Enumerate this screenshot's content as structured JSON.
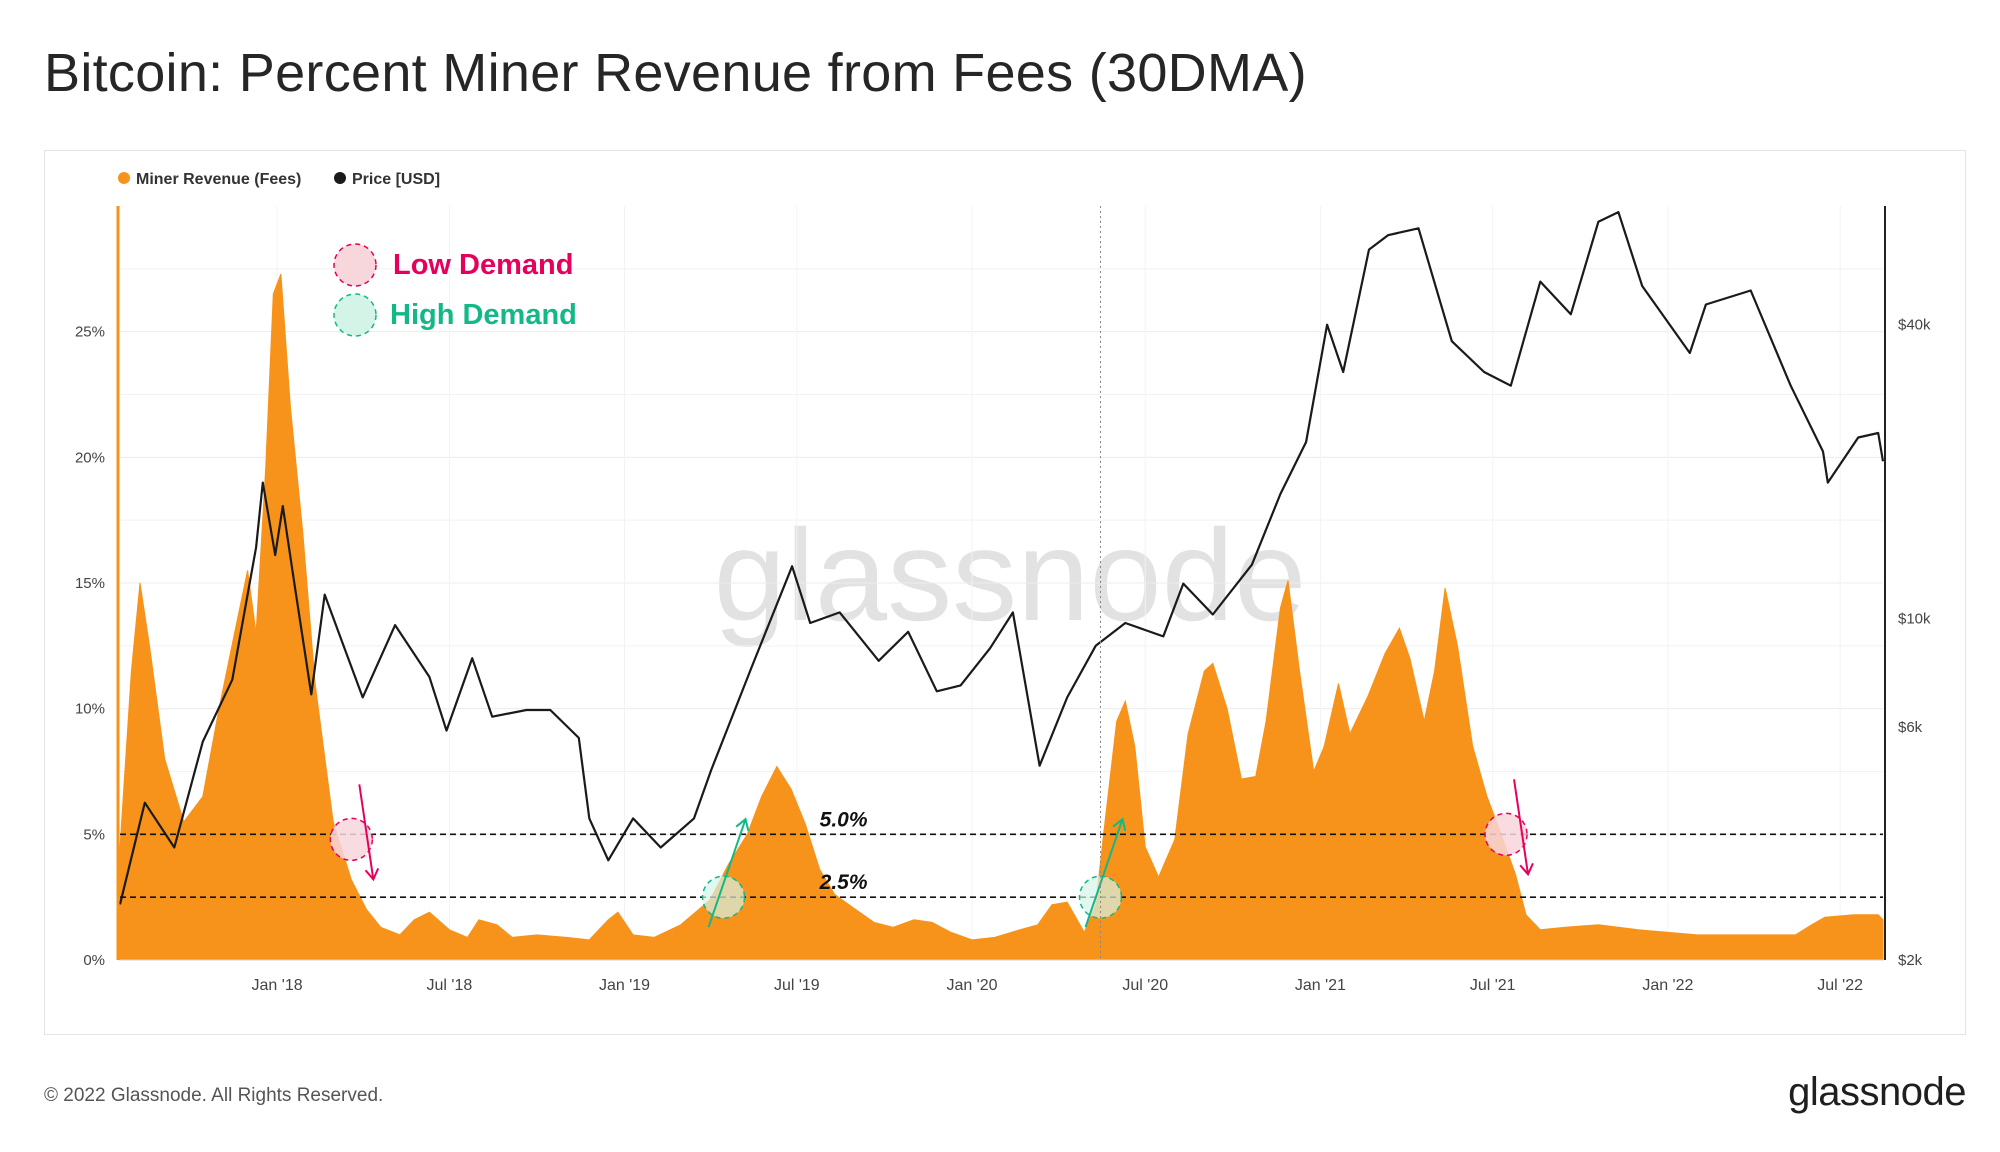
{
  "title": "Bitcoin: Percent Miner Revenue from Fees (30DMA)",
  "footer": "© 2022 Glassnode. All Rights Reserved.",
  "brand": "glassnode",
  "watermark": "glassnode",
  "colors": {
    "fees": "#f7931a",
    "price": "#1a1a1a",
    "low": "#e6005c",
    "high": "#12b886",
    "axis": "#f7931a"
  },
  "annotations": {
    "low_demand": "Low Demand",
    "high_demand": "High Demand",
    "line_5": "5.0%",
    "line_25": "2.5%"
  },
  "chart_data": {
    "type": "area",
    "legend": [
      {
        "name": "Miner Revenue (Fees)",
        "color": "#f7931a"
      },
      {
        "name": "Price [USD]",
        "color": "#1a1a1a"
      }
    ],
    "legend_position": "top-left",
    "grid": true,
    "x_range": [
      "2017-07-20",
      "2022-08-15"
    ],
    "x_ticks": [
      "Jan '18",
      "Jul '18",
      "Jan '19",
      "Jul '19",
      "Jan '20",
      "Jul '20",
      "Jan '21",
      "Jul '21",
      "Jan '22",
      "Jul '22"
    ],
    "y_left": {
      "scale": "linear",
      "range": [
        0,
        30
      ],
      "ticks": [
        "0%",
        "5%",
        "10%",
        "15%",
        "20%",
        "25%"
      ]
    },
    "y_right": {
      "scale": "log",
      "range": [
        2000,
        70000
      ],
      "ticks": [
        "$2k",
        "$6k",
        "$10k",
        "$40k"
      ]
    },
    "reference_lines": [
      {
        "value": 5.0,
        "label": "5.0%"
      },
      {
        "value": 2.5,
        "label": "2.5%"
      }
    ],
    "marker_events": [
      {
        "date": "2018-03-20",
        "type": "low",
        "value": 4.8
      },
      {
        "date": "2019-04-15",
        "type": "high",
        "value": 2.5
      },
      {
        "date": "2020-05-15",
        "type": "high",
        "value": 2.5
      },
      {
        "date": "2021-07-15",
        "type": "low",
        "value": 5.0
      }
    ],
    "vertical_marker": "2020-05-15",
    "fees_series": {
      "name": "Miner Revenue (Fees)",
      "points": [
        [
          "2017-07-20",
          4.5
        ],
        [
          "2017-08-01",
          11.5
        ],
        [
          "2017-08-10",
          15.0
        ],
        [
          "2017-08-20",
          12.5
        ],
        [
          "2017-09-05",
          8.0
        ],
        [
          "2017-09-25",
          5.5
        ],
        [
          "2017-10-15",
          6.5
        ],
        [
          "2017-11-01",
          10.0
        ],
        [
          "2017-11-20",
          13.5
        ],
        [
          "2017-12-01",
          15.5
        ],
        [
          "2017-12-10",
          13.0
        ],
        [
          "2017-12-20",
          19.5
        ],
        [
          "2017-12-28",
          26.5
        ],
        [
          "2018-01-05",
          27.3
        ],
        [
          "2018-01-15",
          22.0
        ],
        [
          "2018-01-28",
          17.0
        ],
        [
          "2018-02-10",
          11.0
        ],
        [
          "2018-03-01",
          5.5
        ],
        [
          "2018-03-20",
          3.2
        ],
        [
          "2018-04-05",
          2.0
        ],
        [
          "2018-04-20",
          1.3
        ],
        [
          "2018-05-10",
          1.0
        ],
        [
          "2018-05-25",
          1.6
        ],
        [
          "2018-06-10",
          1.9
        ],
        [
          "2018-07-01",
          1.2
        ],
        [
          "2018-07-20",
          0.9
        ],
        [
          "2018-08-01",
          1.6
        ],
        [
          "2018-08-20",
          1.4
        ],
        [
          "2018-09-05",
          0.9
        ],
        [
          "2018-10-01",
          1.0
        ],
        [
          "2018-11-01",
          0.9
        ],
        [
          "2018-11-25",
          0.8
        ],
        [
          "2018-12-15",
          1.6
        ],
        [
          "2018-12-25",
          1.9
        ],
        [
          "2019-01-10",
          1.0
        ],
        [
          "2019-02-01",
          0.9
        ],
        [
          "2019-03-01",
          1.4
        ],
        [
          "2019-04-01",
          2.4
        ],
        [
          "2019-04-20",
          3.8
        ],
        [
          "2019-05-10",
          5.0
        ],
        [
          "2019-05-25",
          6.5
        ],
        [
          "2019-06-10",
          7.7
        ],
        [
          "2019-06-25",
          6.8
        ],
        [
          "2019-07-10",
          5.4
        ],
        [
          "2019-07-25",
          3.6
        ],
        [
          "2019-08-10",
          2.6
        ],
        [
          "2019-09-01",
          2.0
        ],
        [
          "2019-09-20",
          1.5
        ],
        [
          "2019-10-10",
          1.3
        ],
        [
          "2019-11-01",
          1.6
        ],
        [
          "2019-11-20",
          1.5
        ],
        [
          "2019-12-10",
          1.1
        ],
        [
          "2020-01-01",
          0.8
        ],
        [
          "2020-01-25",
          0.9
        ],
        [
          "2020-02-20",
          1.2
        ],
        [
          "2020-03-10",
          1.4
        ],
        [
          "2020-03-25",
          2.2
        ],
        [
          "2020-04-10",
          2.3
        ],
        [
          "2020-04-28",
          1.1
        ],
        [
          "2020-05-10",
          2.2
        ],
        [
          "2020-05-20",
          5.6
        ],
        [
          "2020-06-01",
          9.5
        ],
        [
          "2020-06-10",
          10.3
        ],
        [
          "2020-06-20",
          8.5
        ],
        [
          "2020-07-01",
          4.5
        ],
        [
          "2020-07-15",
          3.3
        ],
        [
          "2020-08-01",
          4.8
        ],
        [
          "2020-08-15",
          9.0
        ],
        [
          "2020-09-01",
          11.5
        ],
        [
          "2020-09-10",
          11.8
        ],
        [
          "2020-09-25",
          10.0
        ],
        [
          "2020-10-10",
          7.2
        ],
        [
          "2020-10-25",
          7.3
        ],
        [
          "2020-11-05",
          9.5
        ],
        [
          "2020-11-20",
          14.0
        ],
        [
          "2020-11-28",
          15.1
        ],
        [
          "2020-12-10",
          11.5
        ],
        [
          "2020-12-25",
          7.5
        ],
        [
          "2021-01-05",
          8.5
        ],
        [
          "2021-01-20",
          11.0
        ],
        [
          "2021-02-01",
          9.0
        ],
        [
          "2021-02-20",
          10.5
        ],
        [
          "2021-03-10",
          12.2
        ],
        [
          "2021-03-25",
          13.2
        ],
        [
          "2021-04-05",
          12.0
        ],
        [
          "2021-04-20",
          9.5
        ],
        [
          "2021-05-01",
          11.5
        ],
        [
          "2021-05-12",
          14.8
        ],
        [
          "2021-05-25",
          12.5
        ],
        [
          "2021-06-10",
          8.5
        ],
        [
          "2021-06-25",
          6.5
        ],
        [
          "2021-07-10",
          5.0
        ],
        [
          "2021-07-25",
          3.4
        ],
        [
          "2021-08-05",
          1.8
        ],
        [
          "2021-08-20",
          1.2
        ],
        [
          "2021-09-15",
          1.3
        ],
        [
          "2021-10-20",
          1.4
        ],
        [
          "2021-12-01",
          1.2
        ],
        [
          "2022-02-01",
          1.0
        ],
        [
          "2022-04-01",
          1.0
        ],
        [
          "2022-05-15",
          1.0
        ],
        [
          "2022-06-01",
          1.4
        ],
        [
          "2022-06-15",
          1.7
        ],
        [
          "2022-07-15",
          1.8
        ],
        [
          "2022-08-10",
          1.8
        ],
        [
          "2022-08-15",
          1.6
        ]
      ]
    },
    "price_series": {
      "name": "Price [USD]",
      "points": [
        [
          "2017-07-20",
          2600
        ],
        [
          "2017-08-15",
          4200
        ],
        [
          "2017-09-15",
          3400
        ],
        [
          "2017-10-15",
          5600
        ],
        [
          "2017-11-15",
          7500
        ],
        [
          "2017-12-10",
          14000
        ],
        [
          "2017-12-17",
          19000
        ],
        [
          "2017-12-30",
          13500
        ],
        [
          "2018-01-07",
          17000
        ],
        [
          "2018-01-20",
          11500
        ],
        [
          "2018-02-06",
          7000
        ],
        [
          "2018-02-20",
          11200
        ],
        [
          "2018-03-10",
          9000
        ],
        [
          "2018-04-01",
          6900
        ],
        [
          "2018-05-05",
          9700
        ],
        [
          "2018-06-10",
          7600
        ],
        [
          "2018-06-28",
          5900
        ],
        [
          "2018-07-25",
          8300
        ],
        [
          "2018-08-15",
          6300
        ],
        [
          "2018-09-20",
          6500
        ],
        [
          "2018-10-15",
          6500
        ],
        [
          "2018-11-14",
          5700
        ],
        [
          "2018-11-25",
          3900
        ],
        [
          "2018-12-15",
          3200
        ],
        [
          "2019-01-10",
          3900
        ],
        [
          "2019-02-08",
          3400
        ],
        [
          "2019-03-15",
          3900
        ],
        [
          "2019-04-02",
          4900
        ],
        [
          "2019-05-15",
          8000
        ],
        [
          "2019-06-26",
          12800
        ],
        [
          "2019-07-15",
          9800
        ],
        [
          "2019-08-15",
          10300
        ],
        [
          "2019-09-25",
          8200
        ],
        [
          "2019-10-26",
          9400
        ],
        [
          "2019-11-25",
          7100
        ],
        [
          "2019-12-20",
          7300
        ],
        [
          "2020-01-20",
          8700
        ],
        [
          "2020-02-13",
          10300
        ],
        [
          "2020-03-12",
          5000
        ],
        [
          "2020-04-10",
          6900
        ],
        [
          "2020-05-10",
          8800
        ],
        [
          "2020-06-10",
          9800
        ],
        [
          "2020-07-20",
          9200
        ],
        [
          "2020-08-10",
          11800
        ],
        [
          "2020-09-10",
          10200
        ],
        [
          "2020-10-21",
          12900
        ],
        [
          "2020-11-20",
          18000
        ],
        [
          "2020-12-17",
          23000
        ],
        [
          "2021-01-08",
          40000
        ],
        [
          "2021-01-25",
          32000
        ],
        [
          "2021-02-21",
          57000
        ],
        [
          "2021-03-13",
          61000
        ],
        [
          "2021-04-14",
          63000
        ],
        [
          "2021-05-19",
          37000
        ],
        [
          "2021-06-22",
          32000
        ],
        [
          "2021-07-20",
          30000
        ],
        [
          "2021-08-20",
          49000
        ],
        [
          "2021-09-21",
          42000
        ],
        [
          "2021-10-20",
          65000
        ],
        [
          "2021-11-10",
          68000
        ],
        [
          "2021-12-05",
          48000
        ],
        [
          "2022-01-24",
          35000
        ],
        [
          "2022-02-10",
          44000
        ],
        [
          "2022-03-29",
          47000
        ],
        [
          "2022-05-10",
          30000
        ],
        [
          "2022-06-13",
          22000
        ],
        [
          "2022-06-18",
          19000
        ],
        [
          "2022-07-20",
          23500
        ],
        [
          "2022-08-10",
          24000
        ],
        [
          "2022-08-15",
          21000
        ]
      ]
    }
  }
}
